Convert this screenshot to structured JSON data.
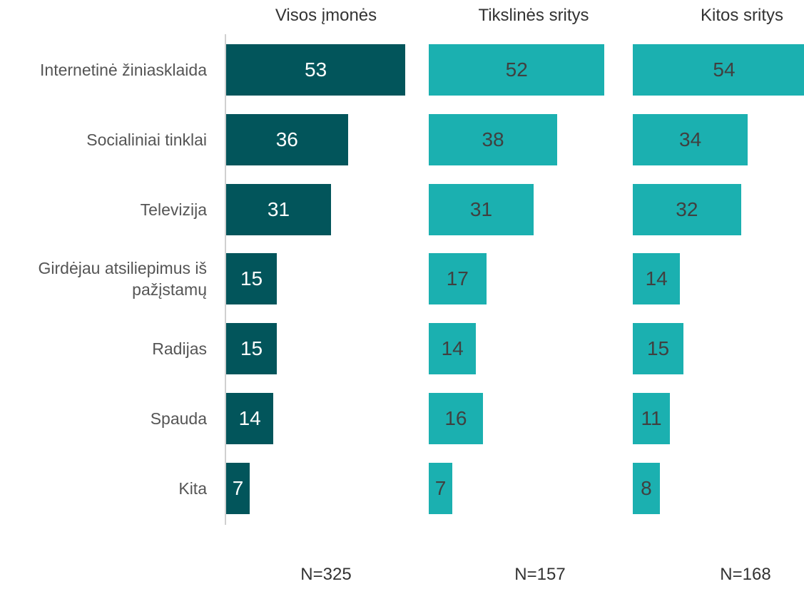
{
  "chart_data": {
    "type": "bar",
    "orientation": "horizontal",
    "categories": [
      "Internetinė žiniasklaida",
      "Socialiniai tinklai",
      "Televizija",
      "Girdėjau atsiliepimus iš pažįstamų",
      "Radijas",
      "Spauda",
      "Kita"
    ],
    "series": [
      {
        "name": "Visos įmonės",
        "color": "#02555b",
        "label_color": "#ffffff",
        "values": [
          53,
          36,
          31,
          15,
          15,
          14,
          7
        ]
      },
      {
        "name": "Tikslinės sritys",
        "color": "#1bb0b0",
        "label_color": "#404040",
        "values": [
          52,
          38,
          31,
          17,
          14,
          16,
          7
        ]
      },
      {
        "name": "Kitos sritys",
        "color": "#1bb0b0",
        "label_color": "#404040",
        "values": [
          54,
          34,
          32,
          14,
          15,
          11,
          8
        ]
      }
    ],
    "annotations": [
      "N=325",
      "N=157",
      "N=168"
    ]
  }
}
